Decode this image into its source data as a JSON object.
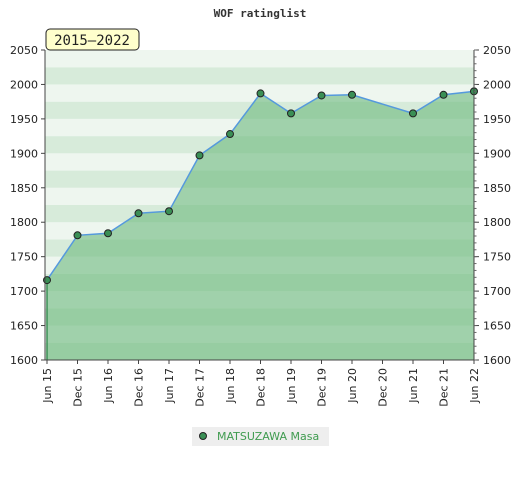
{
  "chart_data": {
    "type": "area",
    "title": "WOF ratinglist",
    "period_label": "2015–2022",
    "xlabel": "",
    "ylabel": "",
    "ylim": [
      1600,
      2050
    ],
    "yticks": [
      1600,
      1650,
      1700,
      1750,
      1800,
      1850,
      1900,
      1950,
      2000,
      2050
    ],
    "x": [
      "Jun 15",
      "Dec 15",
      "Jun 16",
      "Dec 16",
      "Jun 17",
      "Dec 17",
      "Jun 18",
      "Dec 18",
      "Jun 19",
      "Dec 19",
      "Jun 20",
      "Dec 20",
      "Jun 21",
      "Dec 21",
      "Jun 22"
    ],
    "series": [
      {
        "name": "MATSUZAWA Masa",
        "points": [
          {
            "x": "Jun 15",
            "y": 1716
          },
          {
            "x": "Dec 15",
            "y": 1781
          },
          {
            "x": "Jun 16",
            "y": 1784
          },
          {
            "x": "Dec 16",
            "y": 1813
          },
          {
            "x": "Jun 17",
            "y": 1816
          },
          {
            "x": "Dec 17",
            "y": 1897
          },
          {
            "x": "Jun 18",
            "y": 1928
          },
          {
            "x": "Dec 18",
            "y": 1987
          },
          {
            "x": "Jun 19",
            "y": 1958
          },
          {
            "x": "Dec 19",
            "y": 1984
          },
          {
            "x": "Jun 20",
            "y": 1985
          },
          {
            "x": "Jun 21",
            "y": 1958
          },
          {
            "x": "Dec 21",
            "y": 1985
          },
          {
            "x": "Jun 22",
            "y": 1990
          }
        ]
      }
    ],
    "grid": true,
    "legend_position": "bottom-center",
    "colors": {
      "line": "#5599dd",
      "marker": "#3a8f55",
      "area": "#6cb97d",
      "band_light": "#eef6ef",
      "band_dark": "#d7ebda",
      "badge_bg": "#ffffcc"
    }
  }
}
